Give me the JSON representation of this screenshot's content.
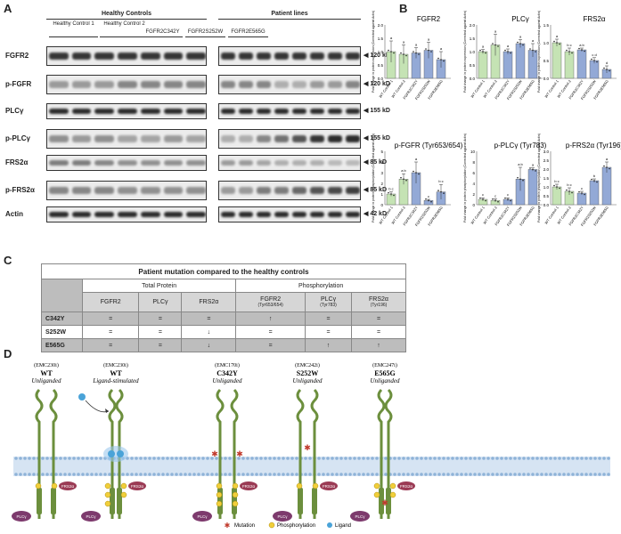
{
  "panel_labels": {
    "a": "A",
    "b": "B",
    "c": "C",
    "d": "D"
  },
  "panelA": {
    "healthy_header": "Healthy Controls",
    "patient_header": "Patient lines",
    "controls": [
      "Healthy Control 1",
      "Healthy Control 2"
    ],
    "patients": [
      "FGFR2C342Y",
      "FGFR2S252W",
      "FGFR2E565G"
    ],
    "blots": [
      {
        "label": "FGFR2",
        "kd": "120 kD"
      },
      {
        "label": "p-FGFR",
        "kd": "120 kD"
      },
      {
        "label": "PLCγ",
        "kd": "155 kD"
      },
      {
        "label": "p-PLCγ",
        "kd": "155 kD"
      },
      {
        "label": "FRS2α",
        "kd": "85 kD"
      },
      {
        "label": "p-FRS2α",
        "kd": "85 kD"
      },
      {
        "label": "Actin",
        "kd": "42 kD"
      }
    ]
  },
  "chart_data": [
    {
      "type": "bar",
      "title": "FGFR2",
      "ylabel": "Fold change in protein expression (Corrected against Actin)",
      "ylim": [
        0,
        2
      ],
      "yticks": [
        "0.0",
        "0.5",
        "1.0",
        "1.5",
        "2.0"
      ],
      "categories": [
        "WT Control 1",
        "WT Control 2",
        "FGFR2C342Y",
        "FGFR2S252W",
        "FGFR2E565G"
      ],
      "values": [
        1.0,
        0.9,
        0.95,
        1.05,
        0.7
      ],
      "errors": [
        0.4,
        0.35,
        0.2,
        0.3,
        0.3
      ],
      "letters": [
        "a",
        "a",
        "a",
        "a",
        "a"
      ]
    },
    {
      "type": "bar",
      "title": "PLCγ",
      "ylabel": "Fold change in protein expression (Corrected against Actin)",
      "ylim": [
        0,
        2
      ],
      "yticks": [
        "0.0",
        "0.5",
        "1.0",
        "1.5",
        "2.0"
      ],
      "categories": [
        "WT Control 1",
        "WT Control 2",
        "FGFR2C342Y",
        "FGFR2S252W",
        "FGFR2E565G"
      ],
      "values": [
        1.0,
        1.25,
        1.0,
        1.3,
        1.05
      ],
      "errors": [
        0.08,
        0.4,
        0.1,
        0.15,
        0.25
      ],
      "letters": [
        "a",
        "a",
        "a",
        "a",
        "a"
      ]
    },
    {
      "type": "bar",
      "title": "FRS2α",
      "ylabel": "Fold change in protein expression (Corrected against Actin)",
      "ylim": [
        0,
        1.5
      ],
      "yticks": [
        "0.0",
        "0.5",
        "1.0",
        "1.5"
      ],
      "categories": [
        "WT Control 1",
        "WT Control 2",
        "FGFR2C342Y",
        "FGFR2S252W",
        "FGFR2E565G"
      ],
      "values": [
        1.0,
        0.75,
        0.8,
        0.5,
        0.25
      ],
      "errors": [
        0.1,
        0.1,
        0.05,
        0.08,
        0.1
      ],
      "letters": [
        "a",
        "b c",
        "a b",
        "c d",
        "d"
      ]
    },
    {
      "type": "bar",
      "title": "p-FGFR  (Tyr653/654)",
      "ylabel": "Fold change in protein phosphorylation (Corrected against Actin)",
      "ylim": [
        0,
        5
      ],
      "yticks": [
        "0",
        "1",
        "2",
        "3",
        "4",
        "5"
      ],
      "categories": [
        "WT Control 1",
        "WT Control 2",
        "FGFR2C342Y",
        "FGFR2S252W",
        "FGFR2E565G"
      ],
      "values": [
        1.0,
        2.4,
        3.0,
        0.4,
        1.2
      ],
      "errors": [
        0.2,
        0.5,
        1.0,
        0.1,
        0.7
      ],
      "letters": [
        "b c",
        "a b",
        "a",
        "c",
        "b c"
      ]
    },
    {
      "type": "bar",
      "title": "p-PLCγ (Tyr783)",
      "ylabel": "Fold change in protein phosphorylation (Corrected against Actin)",
      "ylim": [
        0,
        10
      ],
      "yticks": [
        "0",
        "2",
        "4",
        "6",
        "8",
        "10"
      ],
      "categories": [
        "WT Control 1",
        "WT Control 2",
        "FGFR2C342Y",
        "FGFR2S252W",
        "FGFR2E565G"
      ],
      "values": [
        1.0,
        0.8,
        1.0,
        4.8,
        6.6
      ],
      "errors": [
        0.3,
        0.3,
        0.3,
        2.2,
        0.3
      ],
      "letters": [
        "c",
        "c",
        "c",
        "a b",
        "a"
      ]
    },
    {
      "type": "bar",
      "title": "p-FRS2α (Tyr196)",
      "ylabel": "Fold change in protein phosphorylation (Corrected against Actin)",
      "ylim": [
        0,
        3
      ],
      "yticks": [
        "0.0",
        "0.5",
        "1.0",
        "1.5",
        "2.0",
        "2.5",
        "3.0"
      ],
      "categories": [
        "WT Control 1",
        "WT Control 2",
        "FGFR2C342Y",
        "FGFR2S252W",
        "FGFR2E565G"
      ],
      "values": [
        1.0,
        0.75,
        0.65,
        1.35,
        2.1
      ],
      "errors": [
        0.15,
        0.2,
        0.1,
        0.1,
        0.3
      ],
      "letters": [
        "b c",
        "b c",
        "c",
        "b",
        "a"
      ]
    }
  ],
  "table": {
    "title": "Patient mutation compared to the healthy controls",
    "group_headers": [
      "Total Protein",
      "Phosphorylation"
    ],
    "columns": [
      {
        "name": "FGFR2",
        "sub": ""
      },
      {
        "name": "PLCγ",
        "sub": ""
      },
      {
        "name": "FRS2α",
        "sub": ""
      },
      {
        "name": "FGFR2",
        "sub": "(Tyr653/654)"
      },
      {
        "name": "PLCγ",
        "sub": "(Tyr783)"
      },
      {
        "name": "FRS2α",
        "sub": "(Tyr196)"
      }
    ],
    "rows": [
      {
        "label": "C342Y",
        "cells": [
          "=",
          "=",
          "=",
          "↑",
          "=",
          "="
        ]
      },
      {
        "label": "S252W",
        "cells": [
          "=",
          "=",
          "↓",
          "=",
          "=",
          "="
        ]
      },
      {
        "label": "E565G",
        "cells": [
          "=",
          "=",
          "↓",
          "=",
          "↑",
          "↑"
        ]
      }
    ]
  },
  "diagram": {
    "receptors": [
      {
        "code": "(EMC230i)",
        "name": "WT",
        "state": "Unliganded"
      },
      {
        "code": "(EMC230i)",
        "name": "WT",
        "state": "Ligand-stimulated"
      },
      {
        "code": "(EMC170i)",
        "name": "C342Y",
        "state": "Unliganded"
      },
      {
        "code": "(EMC242i)",
        "name": "S252W",
        "state": "Unliganded"
      },
      {
        "code": "(EMC247i)",
        "name": "E565G",
        "state": "Unliganded"
      }
    ],
    "plc_label": "PLCγ",
    "frs_label": "FRS2α",
    "legend": [
      "Mutation",
      "Phosphorylation",
      "Ligand"
    ]
  },
  "colors": {
    "control_bar": "#c5e3b4",
    "patient_bar": "#93a9d6",
    "ligand": "#4aa3d8",
    "phospho": "#f1cf3a",
    "mutation": "#c0392b",
    "plc": "#7d3a6d",
    "frs": "#9b3b55",
    "receptor": "#6c8f3d"
  }
}
